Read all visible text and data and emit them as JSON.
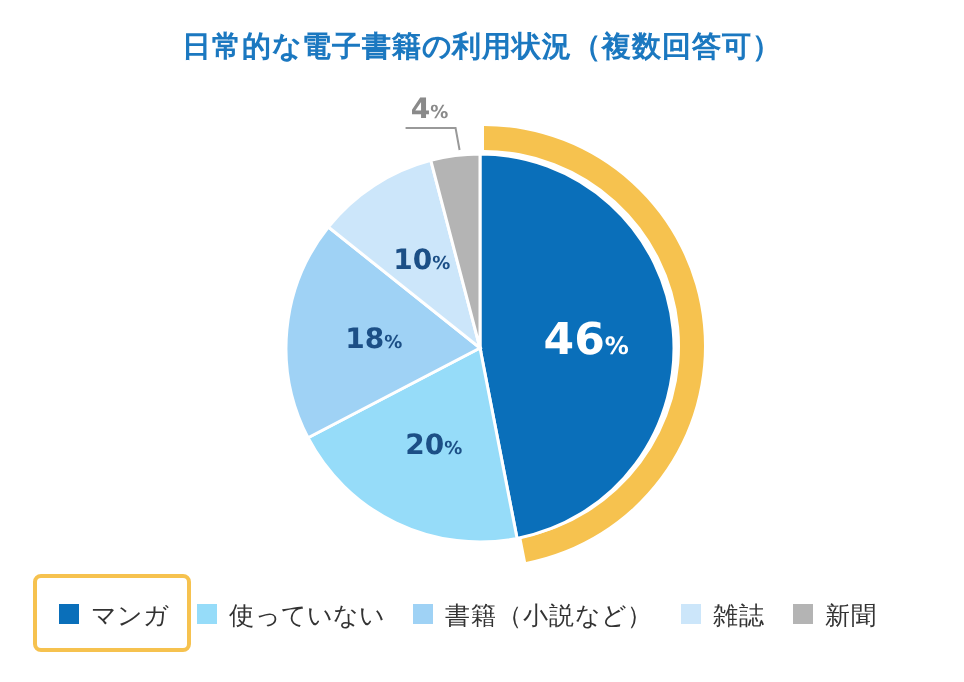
{
  "chart_data": {
    "type": "pie",
    "title": "日常的な電子書籍の利用状況（複数回答可）",
    "categories": [
      "マンガ",
      "使っていない",
      "書籍（小説など）",
      "雑誌",
      "新聞"
    ],
    "values": [
      46,
      20,
      18,
      10,
      4
    ],
    "colors": [
      "#0a6fba",
      "#96dcf9",
      "#9fd2f5",
      "#cce6fa",
      "#b4b4b4"
    ],
    "value_labels": [
      "46%",
      "20%",
      "18%",
      "10%",
      "4%"
    ],
    "legend": "bottom"
  }
}
